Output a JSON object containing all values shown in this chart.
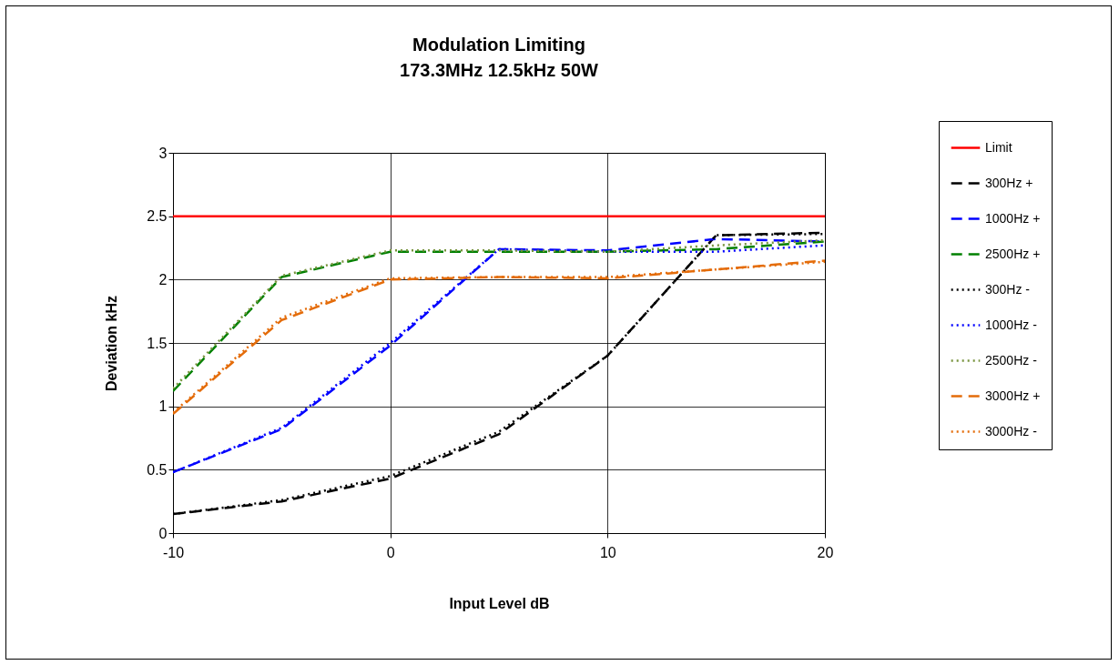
{
  "chart_data": {
    "type": "line",
    "title": [
      "Modulation Limiting",
      "173.3MHz 12.5kHz 50W"
    ],
    "xlabel": "Input Level dB",
    "ylabel": "Deviation kHz",
    "x": [
      -10,
      -5,
      0,
      5,
      10,
      15,
      20
    ],
    "xlim": [
      -10,
      20
    ],
    "xticks": [
      -10,
      0,
      10,
      20
    ],
    "ylim": [
      0,
      3
    ],
    "yticks": [
      0,
      0.5,
      1,
      1.5,
      2,
      2.5,
      3
    ],
    "grid": true,
    "legend": "right",
    "marker": "none",
    "series": [
      {
        "name": "Limit",
        "color": "#ff0000",
        "line_style": "solid",
        "values": [
          2.5,
          2.5,
          2.5,
          2.5,
          2.5,
          2.5,
          2.5
        ]
      },
      {
        "name": "300Hz +",
        "color": "#000000",
        "line_style": "dashed",
        "values": [
          0.15,
          0.25,
          0.43,
          0.78,
          1.4,
          2.35,
          2.37
        ]
      },
      {
        "name": "1000Hz +",
        "color": "#0000ff",
        "line_style": "dashed",
        "values": [
          0.48,
          0.82,
          1.48,
          2.24,
          2.23,
          2.32,
          2.3
        ]
      },
      {
        "name": "2500Hz +",
        "color": "#008000",
        "line_style": "dashed",
        "values": [
          1.12,
          2.02,
          2.22,
          2.22,
          2.22,
          2.24,
          2.3
        ]
      },
      {
        "name": "300Hz -",
        "color": "#000000",
        "line_style": "dotted",
        "values": [
          0.15,
          0.26,
          0.45,
          0.8,
          1.4,
          2.35,
          2.36
        ]
      },
      {
        "name": "1000Hz -",
        "color": "#0000ff",
        "line_style": "dotted",
        "values": [
          0.48,
          0.83,
          1.5,
          2.24,
          2.22,
          2.22,
          2.27
        ]
      },
      {
        "name": "2500Hz -",
        "color": "#77933c",
        "line_style": "dotted",
        "values": [
          1.14,
          2.03,
          2.23,
          2.23,
          2.22,
          2.27,
          2.31
        ]
      },
      {
        "name": "3000Hz +",
        "color": "#e46c0a",
        "line_style": "dashed",
        "values": [
          0.94,
          1.68,
          2.0,
          2.02,
          2.01,
          2.08,
          2.15
        ]
      },
      {
        "name": "3000Hz -",
        "color": "#e46c0a",
        "line_style": "dotted",
        "values": [
          0.95,
          1.7,
          2.01,
          2.02,
          2.02,
          2.08,
          2.14
        ]
      }
    ]
  }
}
